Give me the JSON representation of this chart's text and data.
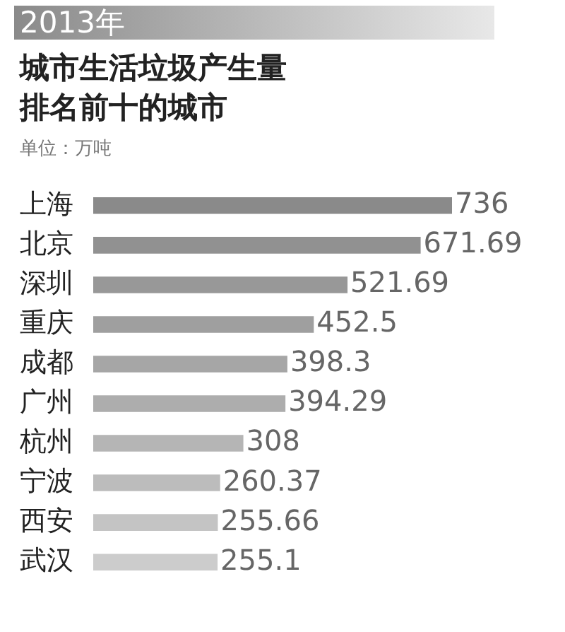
{
  "chart_data": {
    "type": "bar",
    "orientation": "horizontal",
    "title": "2013年",
    "subtitle": "城市生活垃圾产生量排名前十的城市",
    "annotations": [
      "单位：万吨"
    ],
    "categories": [
      "上海",
      "北京",
      "深圳",
      "重庆",
      "成都",
      "广州",
      "杭州",
      "宁波",
      "西安",
      "武汉"
    ],
    "values": [
      736,
      671.69,
      521.69,
      452.5,
      398.3,
      394.29,
      308,
      260.37,
      255.66,
      255.1
    ],
    "colors": [
      "#8a8a8a",
      "#919191",
      "#989898",
      "#9f9f9f",
      "#a6a6a6",
      "#adadad",
      "#b5b5b5",
      "#bcbcbc",
      "#c4c4c4",
      "#cccccc"
    ],
    "data_labels": true
  }
}
